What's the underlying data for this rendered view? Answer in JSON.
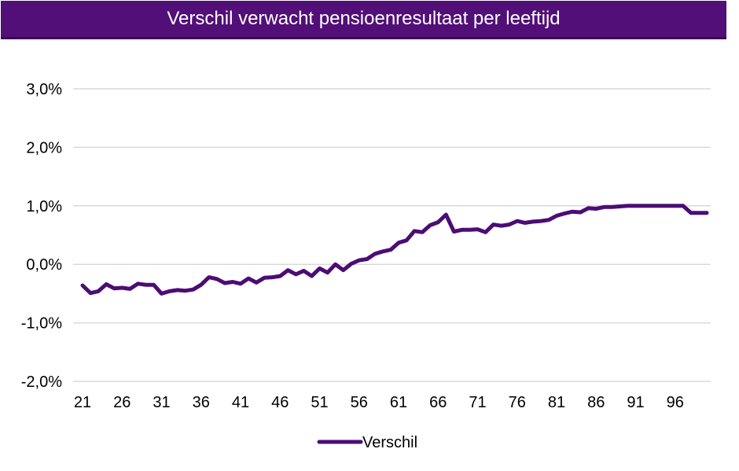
{
  "chart_data": {
    "type": "line",
    "title": "Verschil verwacht pensioenresultaat per leeftijd",
    "xlabel": "",
    "ylabel": "",
    "ylim": [
      -2.0,
      3.0
    ],
    "yticks": [
      -2.0,
      -1.0,
      0.0,
      1.0,
      2.0,
      3.0
    ],
    "ytick_labels": [
      "-2,0%",
      "-1,0%",
      "0,0%",
      "1,0%",
      "2,0%",
      "3,0%"
    ],
    "xtick_labels": [
      "21",
      "26",
      "31",
      "36",
      "41",
      "46",
      "51",
      "56",
      "61",
      "66",
      "71",
      "76",
      "81",
      "86",
      "91",
      "96"
    ],
    "grid": true,
    "legend": "bottom",
    "colors": {
      "line": "#4b0d75",
      "title_bg": "#520f78",
      "grid": "#d9d9d9"
    },
    "x": [
      21,
      22,
      23,
      24,
      25,
      26,
      27,
      28,
      29,
      30,
      31,
      32,
      33,
      34,
      35,
      36,
      37,
      38,
      39,
      40,
      41,
      42,
      43,
      44,
      45,
      46,
      47,
      48,
      49,
      50,
      51,
      52,
      53,
      54,
      55,
      56,
      57,
      58,
      59,
      60,
      61,
      62,
      63,
      64,
      65,
      66,
      67,
      68,
      69,
      70,
      71,
      72,
      73,
      74,
      75,
      76,
      77,
      78,
      79,
      80,
      81,
      82,
      83,
      84,
      85,
      86,
      87,
      88,
      89,
      90,
      91,
      92,
      93,
      94,
      95,
      96,
      97,
      98,
      99,
      100
    ],
    "series": [
      {
        "name": "Verschil",
        "values": [
          -0.36,
          -0.49,
          -0.46,
          -0.34,
          -0.41,
          -0.4,
          -0.42,
          -0.33,
          -0.35,
          -0.35,
          -0.5,
          -0.46,
          -0.44,
          -0.45,
          -0.43,
          -0.35,
          -0.22,
          -0.25,
          -0.32,
          -0.3,
          -0.33,
          -0.24,
          -0.31,
          -0.23,
          -0.22,
          -0.2,
          -0.1,
          -0.17,
          -0.11,
          -0.2,
          -0.07,
          -0.14,
          0.0,
          -0.1,
          0.01,
          0.07,
          0.09,
          0.18,
          0.22,
          0.25,
          0.37,
          0.41,
          0.57,
          0.55,
          0.67,
          0.72,
          0.85,
          0.56,
          0.59,
          0.59,
          0.6,
          0.55,
          0.68,
          0.66,
          0.68,
          0.74,
          0.71,
          0.73,
          0.74,
          0.76,
          0.83,
          0.87,
          0.9,
          0.89,
          0.96,
          0.95,
          0.98,
          0.98,
          0.99,
          1.0,
          1.0,
          1.0,
          1.0,
          1.0,
          1.0,
          1.0,
          1.0,
          0.88,
          0.88,
          0.88
        ]
      }
    ]
  }
}
